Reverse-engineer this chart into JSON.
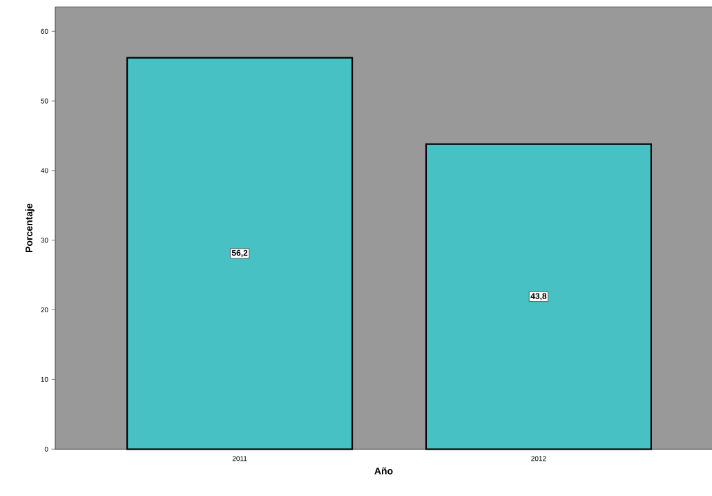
{
  "chart_data": {
    "type": "bar",
    "xlabel": "Año",
    "ylabel": "Porcentaje",
    "categories": [
      "2011",
      "2012"
    ],
    "values": [
      56.2,
      43.8
    ],
    "color": "#48c1c4",
    "value_labels": [
      "56,2",
      "43,8"
    ],
    "ylim": [
      0,
      63.5
    ],
    "yticks": [
      0,
      10,
      20,
      30,
      40,
      50,
      60
    ],
    "grid": false
  }
}
